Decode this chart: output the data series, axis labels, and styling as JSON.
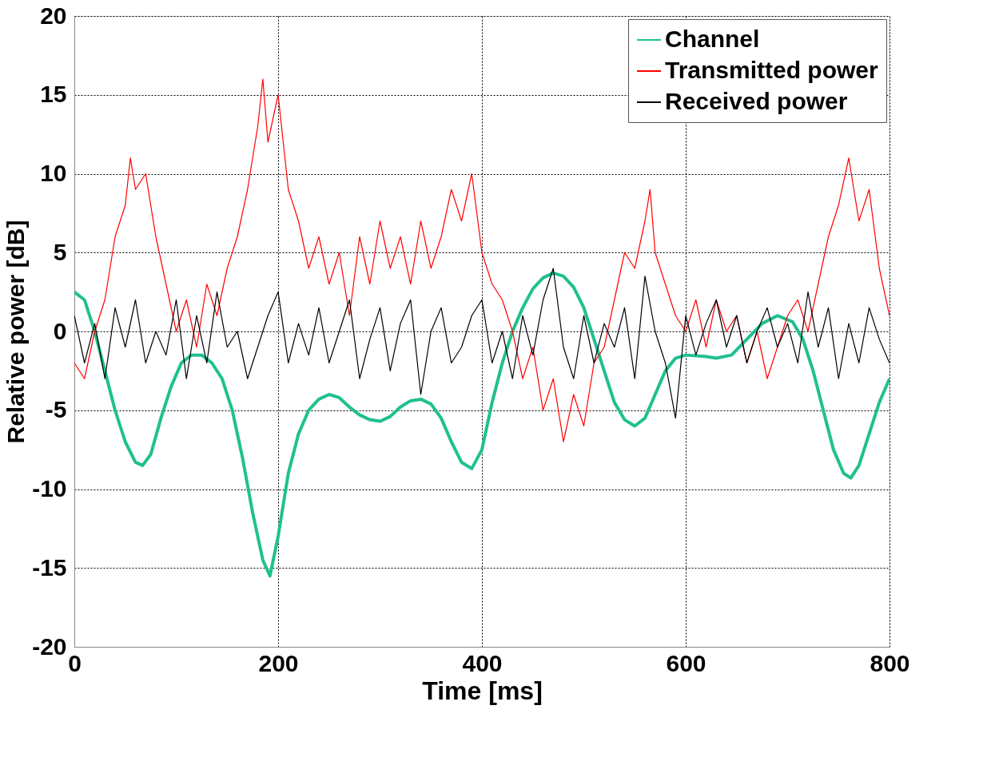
{
  "chart_data": {
    "type": "line",
    "xlabel": "Time [ms]",
    "ylabel": "Relative power [dB]",
    "xlim": [
      0,
      800
    ],
    "xticks": [
      0,
      200,
      400,
      600,
      800
    ],
    "ylim": [
      -20,
      20
    ],
    "yticks": [
      -20,
      -15,
      -10,
      -5,
      0,
      5,
      10,
      15,
      20
    ],
    "grid": true,
    "legend": "top right",
    "line_style": "solid",
    "marker": "none",
    "series": [
      {
        "name": "Channel",
        "color": "#20c090",
        "x": [
          0,
          10,
          20,
          30,
          40,
          50,
          60,
          67,
          75,
          85,
          95,
          105,
          115,
          125,
          135,
          145,
          155,
          165,
          175,
          185,
          192,
          200,
          210,
          220,
          230,
          240,
          250,
          260,
          270,
          280,
          290,
          300,
          310,
          320,
          330,
          340,
          350,
          360,
          370,
          380,
          390,
          400,
          410,
          420,
          430,
          440,
          450,
          460,
          470,
          480,
          490,
          500,
          510,
          520,
          530,
          540,
          550,
          560,
          570,
          580,
          590,
          600,
          620,
          630,
          645,
          660,
          675,
          690,
          705,
          715,
          725,
          735,
          745,
          755,
          762,
          770,
          780,
          790,
          800
        ],
        "values": [
          2.5,
          2,
          0,
          -2.5,
          -5,
          -7,
          -8.3,
          -8.5,
          -7.8,
          -5.5,
          -3.5,
          -2,
          -1.5,
          -1.5,
          -2,
          -3,
          -5,
          -8,
          -11.5,
          -14.5,
          -15.5,
          -13,
          -9,
          -6.5,
          -5,
          -4.3,
          -4,
          -4.2,
          -4.8,
          -5.3,
          -5.6,
          -5.7,
          -5.4,
          -4.8,
          -4.4,
          -4.3,
          -4.6,
          -5.5,
          -7,
          -8.3,
          -8.7,
          -7.5,
          -4.5,
          -2,
          0,
          1.5,
          2.7,
          3.4,
          3.7,
          3.5,
          2.8,
          1.5,
          -0.5,
          -2.5,
          -4.5,
          -5.6,
          -6,
          -5.5,
          -4,
          -2.5,
          -1.7,
          -1.5,
          -1.6,
          -1.7,
          -1.5,
          -0.5,
          0.5,
          1,
          0.6,
          -0.5,
          -2.5,
          -5,
          -7.5,
          -9,
          -9.3,
          -8.5,
          -6.5,
          -4.5,
          -3
        ]
      },
      {
        "name": "Transmitted power",
        "color": "#ff0000",
        "x": [
          0,
          10,
          20,
          30,
          40,
          50,
          55,
          60,
          70,
          80,
          90,
          100,
          110,
          120,
          130,
          140,
          150,
          160,
          170,
          180,
          185,
          190,
          200,
          210,
          220,
          230,
          240,
          250,
          260,
          270,
          280,
          290,
          300,
          310,
          320,
          330,
          340,
          350,
          360,
          370,
          380,
          390,
          400,
          410,
          420,
          430,
          440,
          450,
          460,
          470,
          480,
          490,
          500,
          510,
          520,
          530,
          540,
          550,
          560,
          565,
          570,
          580,
          590,
          600,
          610,
          620,
          630,
          640,
          650,
          660,
          670,
          680,
          690,
          700,
          710,
          720,
          730,
          740,
          750,
          760,
          770,
          780,
          790,
          800
        ],
        "values": [
          -2,
          -3,
          0,
          2,
          6,
          8,
          11,
          9,
          10,
          6,
          3,
          0,
          2,
          -1,
          3,
          1,
          4,
          6,
          9,
          13,
          16,
          12,
          15,
          9,
          7,
          4,
          6,
          3,
          5,
          1,
          6,
          3,
          7,
          4,
          6,
          3,
          7,
          4,
          6,
          9,
          7,
          10,
          5,
          3,
          2,
          0,
          -3,
          -1,
          -5,
          -3,
          -7,
          -4,
          -6,
          -2,
          -1,
          2,
          5,
          4,
          7,
          9,
          5,
          3,
          1,
          0,
          2,
          -1,
          2,
          0,
          1,
          -2,
          0,
          -3,
          -1,
          1,
          2,
          0,
          3,
          6,
          8,
          11,
          7,
          9,
          4,
          1
        ]
      },
      {
        "name": "Received power",
        "color": "#000000",
        "x": [
          0,
          10,
          20,
          30,
          40,
          50,
          60,
          70,
          80,
          90,
          100,
          110,
          120,
          130,
          140,
          150,
          160,
          170,
          180,
          190,
          200,
          210,
          220,
          230,
          240,
          250,
          260,
          270,
          280,
          290,
          300,
          310,
          320,
          330,
          340,
          350,
          360,
          370,
          380,
          390,
          400,
          410,
          420,
          430,
          440,
          450,
          460,
          470,
          480,
          490,
          500,
          510,
          520,
          530,
          540,
          550,
          560,
          570,
          580,
          590,
          600,
          610,
          620,
          630,
          640,
          650,
          660,
          670,
          680,
          690,
          700,
          710,
          720,
          730,
          740,
          750,
          760,
          770,
          780,
          790,
          800
        ],
        "values": [
          1,
          -2,
          0.5,
          -3,
          1.5,
          -1,
          2,
          -2,
          0,
          -1.5,
          2,
          -3,
          1,
          -2,
          2.5,
          -1,
          0,
          -3,
          -1,
          1,
          2.5,
          -2,
          0.5,
          -1.5,
          1.5,
          -2,
          0,
          2,
          -3,
          -0.5,
          1.5,
          -2.5,
          0.5,
          2,
          -4,
          0,
          1.5,
          -2,
          -1,
          1,
          2,
          -2,
          0,
          -3,
          1,
          -1.5,
          2,
          4,
          -1,
          -3,
          1,
          -2,
          0.5,
          -1,
          1.5,
          -3,
          3.5,
          0,
          -2,
          -5.5,
          1,
          -1.5,
          0.5,
          2,
          -1,
          1,
          -2,
          0,
          1.5,
          -1,
          0.5,
          -2,
          2.5,
          -1,
          1.5,
          -3,
          0.5,
          -2,
          1.5,
          -0.5,
          -2
        ]
      }
    ]
  }
}
